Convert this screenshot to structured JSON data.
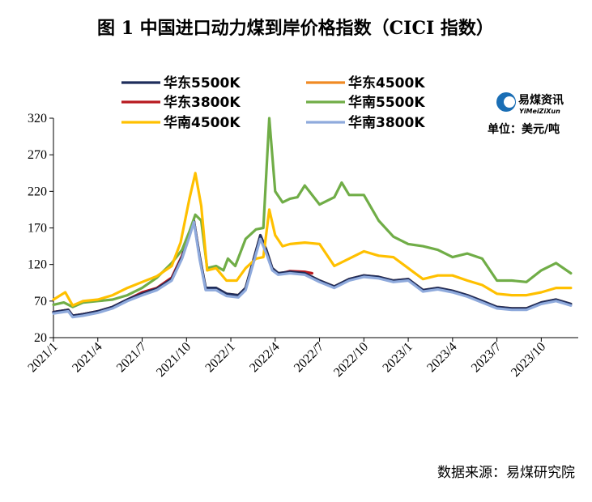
{
  "chart_data": {
    "type": "line",
    "title": "图 1  中国进口动力煤到岸价格指数（CICI 指数）",
    "unit_label": "单位：美元/吨",
    "source": "数据来源：易煤研究院",
    "logo": {
      "name": "易煤资讯",
      "sub": "YiMeiZiXun",
      "color": "#1a6eb5"
    },
    "ylim": [
      20,
      320
    ],
    "yticks": [
      20,
      70,
      120,
      170,
      220,
      270,
      320
    ],
    "xlim": [
      0,
      35.5
    ],
    "xticks": [
      {
        "pos": 0,
        "label": "2021/1"
      },
      {
        "pos": 3,
        "label": "2021/4"
      },
      {
        "pos": 6,
        "label": "2021/7"
      },
      {
        "pos": 9,
        "label": "2021/10"
      },
      {
        "pos": 12,
        "label": "2022/1"
      },
      {
        "pos": 15,
        "label": "2022/4"
      },
      {
        "pos": 18,
        "label": "2022/7"
      },
      {
        "pos": 21,
        "label": "2022/10"
      },
      {
        "pos": 24,
        "label": "2023/1"
      },
      {
        "pos": 27,
        "label": "2023/4"
      },
      {
        "pos": 30,
        "label": "2023/7"
      },
      {
        "pos": 33,
        "label": "2023/10"
      }
    ],
    "legend_position": "top",
    "series": [
      {
        "name": "华东5500K",
        "color": "#1f2d5c",
        "points": [
          [
            0,
            55
          ],
          [
            1,
            58
          ],
          [
            1.3,
            50
          ],
          [
            2,
            52
          ],
          [
            3,
            56
          ],
          [
            4,
            62
          ],
          [
            5,
            72
          ],
          [
            6,
            80
          ],
          [
            7,
            87
          ],
          [
            8,
            100
          ],
          [
            8.7,
            130
          ],
          [
            9.2,
            160
          ],
          [
            9.5,
            180
          ],
          [
            9.9,
            130
          ],
          [
            10.3,
            88
          ],
          [
            11,
            88
          ],
          [
            11.7,
            80
          ],
          [
            12.5,
            78
          ],
          [
            13,
            88
          ],
          [
            14,
            160
          ],
          [
            14.4,
            140
          ],
          [
            14.8,
            115
          ],
          [
            15.2,
            108
          ],
          [
            16,
            110
          ],
          [
            17,
            108
          ],
          [
            18,
            98
          ],
          [
            19,
            90
          ],
          [
            20,
            100
          ],
          [
            21,
            105
          ],
          [
            22,
            103
          ],
          [
            23,
            98
          ],
          [
            24,
            100
          ],
          [
            25,
            85
          ],
          [
            26,
            88
          ],
          [
            27,
            84
          ],
          [
            28,
            78
          ],
          [
            29,
            70
          ],
          [
            30,
            62
          ],
          [
            31,
            60
          ],
          [
            32,
            60
          ],
          [
            33,
            68
          ],
          [
            34,
            72
          ],
          [
            35,
            66
          ]
        ]
      },
      {
        "name": "华东4500K",
        "color": "#f08a24",
        "points": [
          [
            0,
            55
          ],
          [
            1,
            58
          ],
          [
            1.3,
            50
          ],
          [
            2,
            52
          ],
          [
            3,
            56
          ],
          [
            4,
            62
          ],
          [
            5,
            72
          ],
          [
            6,
            80
          ],
          [
            7,
            87
          ],
          [
            8,
            100
          ],
          [
            8.7,
            130
          ],
          [
            9.2,
            160
          ],
          [
            9.5,
            180
          ],
          [
            9.9,
            130
          ],
          [
            10.3,
            88
          ],
          [
            11,
            88
          ],
          [
            11.7,
            80
          ],
          [
            12.5,
            78
          ],
          [
            13,
            88
          ],
          [
            14,
            160
          ],
          [
            14.4,
            140
          ],
          [
            14.8,
            115
          ],
          [
            15.2,
            108
          ],
          [
            16,
            110
          ],
          [
            17,
            108
          ],
          [
            18,
            98
          ],
          [
            19,
            90
          ],
          [
            20,
            100
          ],
          [
            21,
            105
          ],
          [
            22,
            103
          ],
          [
            23,
            98
          ],
          [
            24,
            100
          ],
          [
            25,
            85
          ],
          [
            26,
            88
          ],
          [
            27,
            84
          ],
          [
            28,
            78
          ],
          [
            29,
            70
          ],
          [
            30,
            62
          ],
          [
            31,
            60
          ],
          [
            32,
            60
          ],
          [
            33,
            68
          ],
          [
            34,
            72
          ],
          [
            35,
            66
          ]
        ]
      },
      {
        "name": "华东3800K",
        "color": "#b8191f",
        "points": [
          [
            0,
            55
          ],
          [
            1,
            58
          ],
          [
            1.3,
            50
          ],
          [
            2,
            52
          ],
          [
            3,
            56
          ],
          [
            4,
            62
          ],
          [
            5,
            72
          ],
          [
            6,
            82
          ],
          [
            7,
            88
          ],
          [
            8,
            102
          ],
          [
            8.7,
            132
          ],
          [
            9.2,
            160
          ],
          [
            9.5,
            180
          ],
          [
            9.9,
            128
          ],
          [
            10.3,
            86
          ],
          [
            11,
            86
          ],
          [
            11.7,
            79
          ],
          [
            12.5,
            77
          ],
          [
            13,
            87
          ],
          [
            14,
            158
          ],
          [
            14.4,
            138
          ],
          [
            14.8,
            113
          ],
          [
            15.2,
            107
          ],
          [
            16,
            111
          ],
          [
            17,
            110
          ],
          [
            17.5,
            108
          ]
        ]
      },
      {
        "name": "华南5500K",
        "color": "#70ad47",
        "points": [
          [
            0,
            65
          ],
          [
            0.7,
            68
          ],
          [
            1.3,
            62
          ],
          [
            2,
            68
          ],
          [
            3,
            70
          ],
          [
            4,
            72
          ],
          [
            5,
            78
          ],
          [
            6,
            88
          ],
          [
            7,
            102
          ],
          [
            8,
            122
          ],
          [
            8.7,
            140
          ],
          [
            9.2,
            165
          ],
          [
            9.6,
            188
          ],
          [
            10,
            180
          ],
          [
            10.4,
            115
          ],
          [
            11,
            118
          ],
          [
            11.5,
            112
          ],
          [
            11.8,
            128
          ],
          [
            12.3,
            118
          ],
          [
            13,
            155
          ],
          [
            13.7,
            168
          ],
          [
            14.2,
            170
          ],
          [
            14.6,
            320
          ],
          [
            15,
            220
          ],
          [
            15.5,
            205
          ],
          [
            16,
            210
          ],
          [
            16.5,
            212
          ],
          [
            17,
            228
          ],
          [
            18,
            202
          ],
          [
            19,
            212
          ],
          [
            19.5,
            232
          ],
          [
            20,
            215
          ],
          [
            21,
            215
          ],
          [
            22,
            180
          ],
          [
            23,
            158
          ],
          [
            24,
            148
          ],
          [
            25,
            145
          ],
          [
            26,
            140
          ],
          [
            27,
            130
          ],
          [
            28,
            135
          ],
          [
            29,
            128
          ],
          [
            30,
            98
          ],
          [
            31,
            98
          ],
          [
            32,
            96
          ],
          [
            33,
            112
          ],
          [
            34,
            122
          ],
          [
            35,
            108
          ]
        ]
      },
      {
        "name": "华南4500K",
        "color": "#ffc000",
        "points": [
          [
            0,
            72
          ],
          [
            0.8,
            82
          ],
          [
            1.3,
            64
          ],
          [
            2,
            70
          ],
          [
            3,
            72
          ],
          [
            4,
            78
          ],
          [
            5,
            88
          ],
          [
            6,
            96
          ],
          [
            7,
            104
          ],
          [
            8,
            118
          ],
          [
            8.6,
            150
          ],
          [
            9.2,
            210
          ],
          [
            9.6,
            245
          ],
          [
            10,
            200
          ],
          [
            10.4,
            112
          ],
          [
            11,
            115
          ],
          [
            11.7,
            98
          ],
          [
            12.4,
            98
          ],
          [
            13,
            115
          ],
          [
            13.7,
            128
          ],
          [
            14.2,
            130
          ],
          [
            14.6,
            195
          ],
          [
            15,
            160
          ],
          [
            15.5,
            145
          ],
          [
            16,
            148
          ],
          [
            17,
            150
          ],
          [
            18,
            148
          ],
          [
            19,
            118
          ],
          [
            20,
            128
          ],
          [
            21,
            138
          ],
          [
            22,
            132
          ],
          [
            23,
            130
          ],
          [
            24,
            115
          ],
          [
            25,
            100
          ],
          [
            26,
            105
          ],
          [
            27,
            105
          ],
          [
            28,
            98
          ],
          [
            29,
            92
          ],
          [
            30,
            80
          ],
          [
            31,
            78
          ],
          [
            32,
            78
          ],
          [
            33,
            82
          ],
          [
            34,
            88
          ],
          [
            35,
            88
          ]
        ]
      },
      {
        "name": "华南3800K",
        "color": "#8faadc",
        "points": [
          [
            0,
            53
          ],
          [
            1,
            56
          ],
          [
            1.3,
            48
          ],
          [
            2,
            50
          ],
          [
            3,
            54
          ],
          [
            4,
            60
          ],
          [
            5,
            70
          ],
          [
            6,
            78
          ],
          [
            7,
            85
          ],
          [
            8,
            98
          ],
          [
            8.7,
            128
          ],
          [
            9.2,
            158
          ],
          [
            9.5,
            178
          ],
          [
            9.9,
            126
          ],
          [
            10.3,
            85
          ],
          [
            11,
            85
          ],
          [
            11.7,
            77
          ],
          [
            12.5,
            75
          ],
          [
            13,
            85
          ],
          [
            14,
            155
          ],
          [
            14.4,
            135
          ],
          [
            14.8,
            112
          ],
          [
            15.2,
            106
          ],
          [
            16,
            108
          ],
          [
            17,
            106
          ],
          [
            18,
            96
          ],
          [
            19,
            88
          ],
          [
            20,
            98
          ],
          [
            21,
            103
          ],
          [
            22,
            101
          ],
          [
            23,
            96
          ],
          [
            24,
            98
          ],
          [
            25,
            83
          ],
          [
            26,
            86
          ],
          [
            27,
            82
          ],
          [
            28,
            76
          ],
          [
            29,
            68
          ],
          [
            30,
            60
          ],
          [
            31,
            58
          ],
          [
            32,
            58
          ],
          [
            33,
            66
          ],
          [
            34,
            70
          ],
          [
            35,
            64
          ]
        ]
      }
    ]
  }
}
